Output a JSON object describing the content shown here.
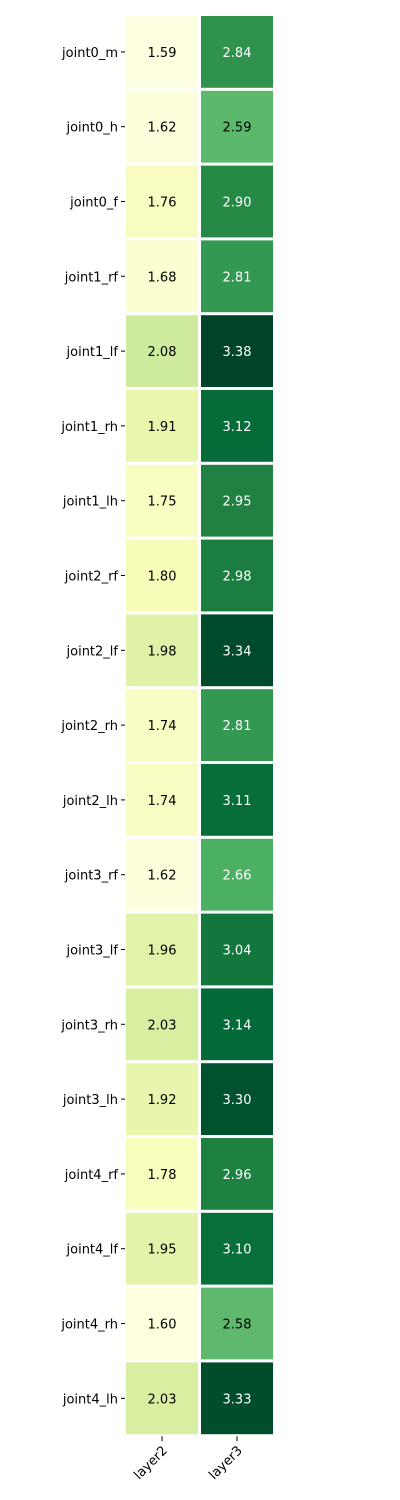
{
  "chart_data": {
    "type": "heatmap",
    "title": "",
    "xlabel": "",
    "ylabel": "",
    "columns": [
      "layer2",
      "layer3"
    ],
    "rows": [
      "joint0_m",
      "joint0_h",
      "joint0_f",
      "joint1_rf",
      "joint1_lf",
      "joint1_rh",
      "joint1_lh",
      "joint2_rf",
      "joint2_lf",
      "joint2_rh",
      "joint2_lh",
      "joint3_rf",
      "joint3_lf",
      "joint3_rh",
      "joint3_lh",
      "joint4_rf",
      "joint4_lf",
      "joint4_rh",
      "joint4_lh"
    ],
    "values": [
      [
        1.59,
        2.84
      ],
      [
        1.62,
        2.59
      ],
      [
        1.76,
        2.9
      ],
      [
        1.68,
        2.81
      ],
      [
        2.08,
        3.38
      ],
      [
        1.91,
        3.12
      ],
      [
        1.75,
        2.95
      ],
      [
        1.8,
        2.98
      ],
      [
        1.98,
        3.34
      ],
      [
        1.74,
        2.81
      ],
      [
        1.74,
        3.11
      ],
      [
        1.62,
        2.66
      ],
      [
        1.96,
        3.04
      ],
      [
        2.03,
        3.14
      ],
      [
        1.92,
        3.3
      ],
      [
        1.78,
        2.96
      ],
      [
        1.95,
        3.1
      ],
      [
        1.6,
        2.58
      ],
      [
        2.03,
        3.33
      ]
    ],
    "colormap": "YlGn",
    "value_format": "2 decimals",
    "colorbar": false,
    "grid": false
  }
}
